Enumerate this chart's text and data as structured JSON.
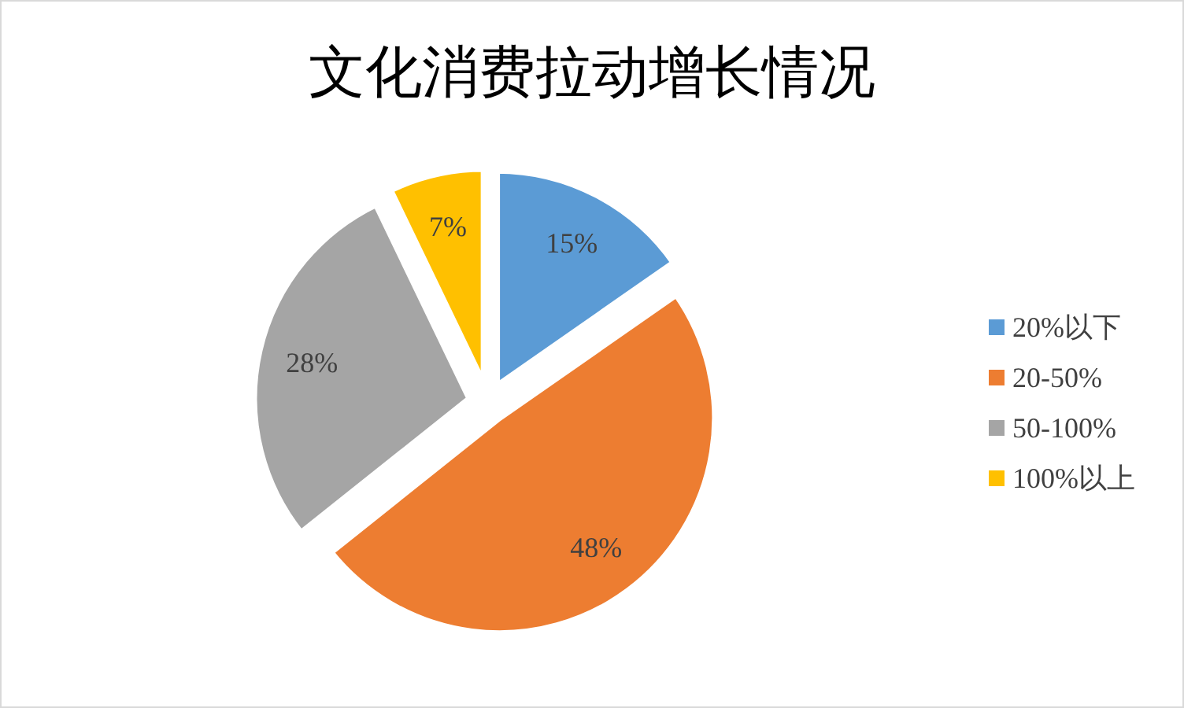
{
  "chart_data": {
    "type": "pie",
    "title": "文化消费拉动增长情况",
    "categories": [
      "20%以下",
      "20-50%",
      "50-100%",
      "100%以上"
    ],
    "values": [
      15,
      48,
      28,
      7
    ],
    "colors": [
      "#5b9bd5",
      "#ed7d31",
      "#a5a5a5",
      "#ffc000"
    ],
    "value_labels": [
      "15%",
      "48%",
      "28%",
      "7%"
    ],
    "legend": "right"
  }
}
